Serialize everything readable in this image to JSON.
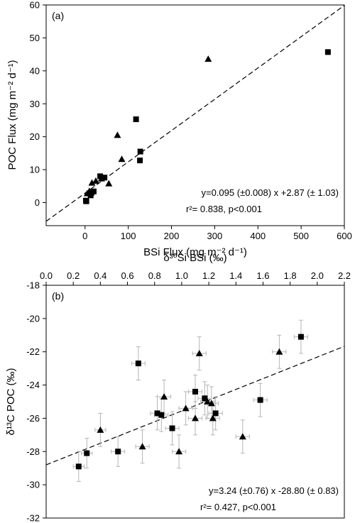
{
  "chart_data": [
    {
      "type": "scatter",
      "panel_label": "(a)",
      "xlabel": "BSi Flux (mg m⁻² d⁻¹)",
      "ylabel": "POC Flux (mg m⁻² d⁻¹)",
      "xlim": [
        -90,
        600
      ],
      "ylim": [
        -7,
        60
      ],
      "xticks": [
        0,
        100,
        200,
        300,
        400,
        500,
        600
      ],
      "yticks": [
        0,
        10,
        20,
        30,
        40,
        50,
        60
      ],
      "grid": false,
      "series": [
        {
          "marker": "square",
          "points": [
            {
              "x": 2,
              "y": 0.6
            },
            {
              "x": 3,
              "y": 0.4
            },
            {
              "x": 13,
              "y": 2.2
            },
            {
              "x": 15,
              "y": 3.0
            },
            {
              "x": 20,
              "y": 3.4
            },
            {
              "x": 35,
              "y": 8.0
            },
            {
              "x": 45,
              "y": 7.6
            },
            {
              "x": 118,
              "y": 25.3
            },
            {
              "x": 128,
              "y": 15.5
            },
            {
              "x": 127,
              "y": 12.8
            },
            {
              "x": 562,
              "y": 45.7
            }
          ]
        },
        {
          "marker": "triangle",
          "points": [
            {
              "x": 5,
              "y": 2.8
            },
            {
              "x": 10,
              "y": 3.5
            },
            {
              "x": 16,
              "y": 6.0
            },
            {
              "x": 25,
              "y": 6.6
            },
            {
              "x": 38,
              "y": 7.3
            },
            {
              "x": 55,
              "y": 5.8
            },
            {
              "x": 75,
              "y": 20.5
            },
            {
              "x": 85,
              "y": 13.2
            },
            {
              "x": 285,
              "y": 43.6
            }
          ]
        }
      ],
      "fit_line": {
        "slope": 0.095,
        "intercept": 2.87,
        "style": "dashed"
      },
      "annotations": [
        "y=0.095 (±0.008) x +2.87 (± 1.03)",
        "r²= 0.838, p<0.001"
      ]
    },
    {
      "type": "scatter",
      "panel_label": "(b)",
      "xlabel": "δ³⁰Si BSi (‰)",
      "xlabel_position": "top",
      "ylabel": "δ¹³C POC (‰)",
      "xlim": [
        0,
        2.2
      ],
      "ylim": [
        -32,
        -18
      ],
      "xticks": [
        0.0,
        0.2,
        0.4,
        0.6,
        0.8,
        1.0,
        1.2,
        1.4,
        1.6,
        1.8,
        2.0,
        2.2
      ],
      "yticks": [
        -32,
        -30,
        -28,
        -26,
        -24,
        -22,
        -20,
        -18
      ],
      "grid": false,
      "error_bars": true,
      "series": [
        {
          "marker": "square",
          "points": [
            {
              "x": 0.24,
              "y": -28.9,
              "xerr": 0.04,
              "yerr": 0.9
            },
            {
              "x": 0.3,
              "y": -28.1,
              "xerr": 0.04,
              "yerr": 0.9
            },
            {
              "x": 0.53,
              "y": -28.0,
              "xerr": 0.05,
              "yerr": 0.9
            },
            {
              "x": 0.68,
              "y": -22.7,
              "xerr": 0.05,
              "yerr": 1.0
            },
            {
              "x": 0.82,
              "y": -25.7,
              "xerr": 0.05,
              "yerr": 1.0
            },
            {
              "x": 0.85,
              "y": -25.8,
              "xerr": 0.05,
              "yerr": 1.0
            },
            {
              "x": 0.93,
              "y": -26.6,
              "xerr": 0.05,
              "yerr": 1.0
            },
            {
              "x": 1.1,
              "y": -24.4,
              "xerr": 0.05,
              "yerr": 1.0
            },
            {
              "x": 1.17,
              "y": -24.8,
              "xerr": 0.05,
              "yerr": 1.0
            },
            {
              "x": 1.25,
              "y": -25.7,
              "xerr": 0.05,
              "yerr": 1.0
            },
            {
              "x": 1.58,
              "y": -24.9,
              "xerr": 0.05,
              "yerr": 1.0
            },
            {
              "x": 1.88,
              "y": -21.1,
              "xerr": 0.05,
              "yerr": 1.0
            }
          ]
        },
        {
          "marker": "triangle",
          "points": [
            {
              "x": 0.4,
              "y": -26.7,
              "xerr": 0.04,
              "yerr": 1.0
            },
            {
              "x": 0.71,
              "y": -27.7,
              "xerr": 0.05,
              "yerr": 1.0
            },
            {
              "x": 0.87,
              "y": -24.7,
              "xerr": 0.05,
              "yerr": 1.0
            },
            {
              "x": 0.98,
              "y": -28.0,
              "xerr": 0.05,
              "yerr": 1.0
            },
            {
              "x": 1.03,
              "y": -25.4,
              "xerr": 0.05,
              "yerr": 1.0
            },
            {
              "x": 1.1,
              "y": -26.0,
              "xerr": 0.05,
              "yerr": 1.0
            },
            {
              "x": 1.13,
              "y": -22.1,
              "xerr": 0.05,
              "yerr": 1.0
            },
            {
              "x": 1.19,
              "y": -25.0,
              "xerr": 0.05,
              "yerr": 1.0
            },
            {
              "x": 1.22,
              "y": -25.1,
              "xerr": 0.05,
              "yerr": 1.0
            },
            {
              "x": 1.23,
              "y": -26.0,
              "xerr": 0.05,
              "yerr": 1.0
            },
            {
              "x": 1.45,
              "y": -27.1,
              "xerr": 0.05,
              "yerr": 1.0
            },
            {
              "x": 1.72,
              "y": -22.0,
              "xerr": 0.05,
              "yerr": 1.0
            }
          ]
        }
      ],
      "fit_line": {
        "slope": 3.24,
        "intercept": -28.8,
        "style": "dashed"
      },
      "annotations": [
        "y=3.24 (±0.76) x -28.80 (± 0.83)",
        "r²= 0.427, p<0.001"
      ]
    }
  ]
}
